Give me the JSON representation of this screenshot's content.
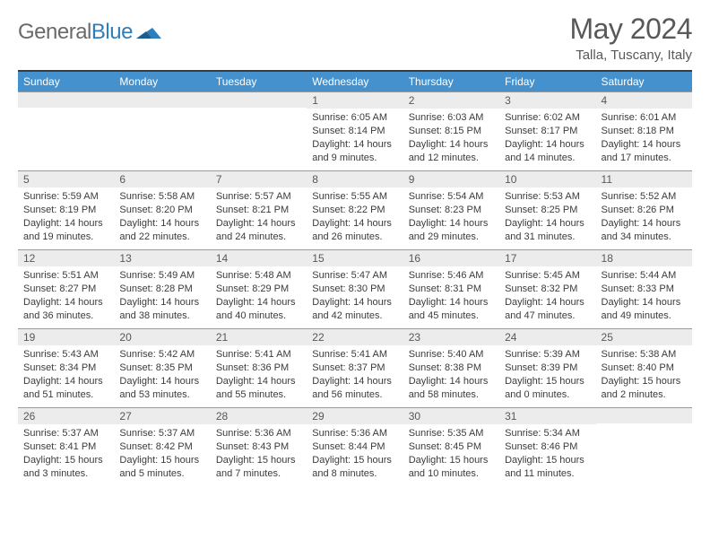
{
  "brand": {
    "part1": "General",
    "part2": "Blue"
  },
  "title": "May 2024",
  "location": "Talla, Tuscany, Italy",
  "colors": {
    "header_bg": "#4591cd",
    "header_fg": "#ffffff",
    "daynum_bg": "#ececec",
    "divider": "#3b3b3b",
    "text": "#3b3b3b",
    "muted": "#585858"
  },
  "weekdays": [
    "Sunday",
    "Monday",
    "Tuesday",
    "Wednesday",
    "Thursday",
    "Friday",
    "Saturday"
  ],
  "grid": [
    [
      {
        "n": "",
        "sr": "",
        "ss": "",
        "dl": ""
      },
      {
        "n": "",
        "sr": "",
        "ss": "",
        "dl": ""
      },
      {
        "n": "",
        "sr": "",
        "ss": "",
        "dl": ""
      },
      {
        "n": "1",
        "sr": "Sunrise: 6:05 AM",
        "ss": "Sunset: 8:14 PM",
        "dl": "Daylight: 14 hours and 9 minutes."
      },
      {
        "n": "2",
        "sr": "Sunrise: 6:03 AM",
        "ss": "Sunset: 8:15 PM",
        "dl": "Daylight: 14 hours and 12 minutes."
      },
      {
        "n": "3",
        "sr": "Sunrise: 6:02 AM",
        "ss": "Sunset: 8:17 PM",
        "dl": "Daylight: 14 hours and 14 minutes."
      },
      {
        "n": "4",
        "sr": "Sunrise: 6:01 AM",
        "ss": "Sunset: 8:18 PM",
        "dl": "Daylight: 14 hours and 17 minutes."
      }
    ],
    [
      {
        "n": "5",
        "sr": "Sunrise: 5:59 AM",
        "ss": "Sunset: 8:19 PM",
        "dl": "Daylight: 14 hours and 19 minutes."
      },
      {
        "n": "6",
        "sr": "Sunrise: 5:58 AM",
        "ss": "Sunset: 8:20 PM",
        "dl": "Daylight: 14 hours and 22 minutes."
      },
      {
        "n": "7",
        "sr": "Sunrise: 5:57 AM",
        "ss": "Sunset: 8:21 PM",
        "dl": "Daylight: 14 hours and 24 minutes."
      },
      {
        "n": "8",
        "sr": "Sunrise: 5:55 AM",
        "ss": "Sunset: 8:22 PM",
        "dl": "Daylight: 14 hours and 26 minutes."
      },
      {
        "n": "9",
        "sr": "Sunrise: 5:54 AM",
        "ss": "Sunset: 8:23 PM",
        "dl": "Daylight: 14 hours and 29 minutes."
      },
      {
        "n": "10",
        "sr": "Sunrise: 5:53 AM",
        "ss": "Sunset: 8:25 PM",
        "dl": "Daylight: 14 hours and 31 minutes."
      },
      {
        "n": "11",
        "sr": "Sunrise: 5:52 AM",
        "ss": "Sunset: 8:26 PM",
        "dl": "Daylight: 14 hours and 34 minutes."
      }
    ],
    [
      {
        "n": "12",
        "sr": "Sunrise: 5:51 AM",
        "ss": "Sunset: 8:27 PM",
        "dl": "Daylight: 14 hours and 36 minutes."
      },
      {
        "n": "13",
        "sr": "Sunrise: 5:49 AM",
        "ss": "Sunset: 8:28 PM",
        "dl": "Daylight: 14 hours and 38 minutes."
      },
      {
        "n": "14",
        "sr": "Sunrise: 5:48 AM",
        "ss": "Sunset: 8:29 PM",
        "dl": "Daylight: 14 hours and 40 minutes."
      },
      {
        "n": "15",
        "sr": "Sunrise: 5:47 AM",
        "ss": "Sunset: 8:30 PM",
        "dl": "Daylight: 14 hours and 42 minutes."
      },
      {
        "n": "16",
        "sr": "Sunrise: 5:46 AM",
        "ss": "Sunset: 8:31 PM",
        "dl": "Daylight: 14 hours and 45 minutes."
      },
      {
        "n": "17",
        "sr": "Sunrise: 5:45 AM",
        "ss": "Sunset: 8:32 PM",
        "dl": "Daylight: 14 hours and 47 minutes."
      },
      {
        "n": "18",
        "sr": "Sunrise: 5:44 AM",
        "ss": "Sunset: 8:33 PM",
        "dl": "Daylight: 14 hours and 49 minutes."
      }
    ],
    [
      {
        "n": "19",
        "sr": "Sunrise: 5:43 AM",
        "ss": "Sunset: 8:34 PM",
        "dl": "Daylight: 14 hours and 51 minutes."
      },
      {
        "n": "20",
        "sr": "Sunrise: 5:42 AM",
        "ss": "Sunset: 8:35 PM",
        "dl": "Daylight: 14 hours and 53 minutes."
      },
      {
        "n": "21",
        "sr": "Sunrise: 5:41 AM",
        "ss": "Sunset: 8:36 PM",
        "dl": "Daylight: 14 hours and 55 minutes."
      },
      {
        "n": "22",
        "sr": "Sunrise: 5:41 AM",
        "ss": "Sunset: 8:37 PM",
        "dl": "Daylight: 14 hours and 56 minutes."
      },
      {
        "n": "23",
        "sr": "Sunrise: 5:40 AM",
        "ss": "Sunset: 8:38 PM",
        "dl": "Daylight: 14 hours and 58 minutes."
      },
      {
        "n": "24",
        "sr": "Sunrise: 5:39 AM",
        "ss": "Sunset: 8:39 PM",
        "dl": "Daylight: 15 hours and 0 minutes."
      },
      {
        "n": "25",
        "sr": "Sunrise: 5:38 AM",
        "ss": "Sunset: 8:40 PM",
        "dl": "Daylight: 15 hours and 2 minutes."
      }
    ],
    [
      {
        "n": "26",
        "sr": "Sunrise: 5:37 AM",
        "ss": "Sunset: 8:41 PM",
        "dl": "Daylight: 15 hours and 3 minutes."
      },
      {
        "n": "27",
        "sr": "Sunrise: 5:37 AM",
        "ss": "Sunset: 8:42 PM",
        "dl": "Daylight: 15 hours and 5 minutes."
      },
      {
        "n": "28",
        "sr": "Sunrise: 5:36 AM",
        "ss": "Sunset: 8:43 PM",
        "dl": "Daylight: 15 hours and 7 minutes."
      },
      {
        "n": "29",
        "sr": "Sunrise: 5:36 AM",
        "ss": "Sunset: 8:44 PM",
        "dl": "Daylight: 15 hours and 8 minutes."
      },
      {
        "n": "30",
        "sr": "Sunrise: 5:35 AM",
        "ss": "Sunset: 8:45 PM",
        "dl": "Daylight: 15 hours and 10 minutes."
      },
      {
        "n": "31",
        "sr": "Sunrise: 5:34 AM",
        "ss": "Sunset: 8:46 PM",
        "dl": "Daylight: 15 hours and 11 minutes."
      },
      {
        "n": "",
        "sr": "",
        "ss": "",
        "dl": ""
      }
    ]
  ]
}
